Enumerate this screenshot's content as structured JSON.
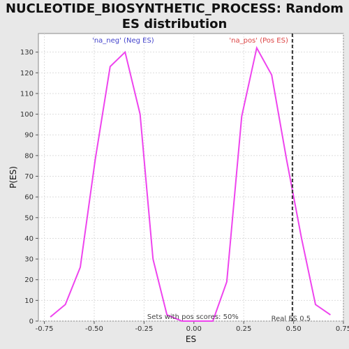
{
  "chart_data": {
    "type": "line",
    "title": "NUCLEOTIDE_BIOSYNTHETIC_PROCESS: Random ES distribution",
    "xlabel": "ES",
    "ylabel": "P(ES)",
    "xlim": [
      -0.78,
      0.75
    ],
    "ylim": [
      0,
      139
    ],
    "x_ticks": [
      "-0.75",
      "-0.50",
      "-0.25",
      "0.00",
      "0.25",
      "0.50",
      "0.75"
    ],
    "x_tick_values": [
      -0.75,
      -0.5,
      -0.25,
      0.0,
      0.25,
      0.5,
      0.75
    ],
    "y_ticks": [
      "0",
      "10",
      "20",
      "30",
      "40",
      "50",
      "60",
      "70",
      "80",
      "90",
      "100",
      "110",
      "120",
      "130"
    ],
    "y_tick_values": [
      0,
      10,
      20,
      30,
      40,
      50,
      60,
      70,
      80,
      90,
      100,
      110,
      120,
      130
    ],
    "grid": true,
    "line_color": "#ee44ee",
    "series": [
      {
        "x": [
          -0.72,
          -0.645,
          -0.57,
          -0.495,
          -0.42,
          -0.345,
          -0.27,
          -0.205,
          -0.135,
          -0.06,
          0.0,
          0.095,
          0.165,
          0.24,
          0.315,
          0.39,
          0.465,
          0.54,
          0.61,
          0.685
        ],
        "y": [
          2,
          8,
          26,
          78,
          123,
          130,
          100,
          30,
          3,
          0,
          0,
          0,
          19,
          99,
          132,
          119,
          78,
          40,
          8,
          3
        ]
      }
    ],
    "annotations": {
      "neg_label": "'na_neg' (Neg ES)",
      "neg_color": "#4444cc",
      "pos_label": "'na_pos' (Pos ES)",
      "pos_color": "#dd4444",
      "sets_text": "Sets with pos scores: 50%",
      "real_es_text": "Real ES 0.5",
      "real_es_value": 0.494
    }
  }
}
